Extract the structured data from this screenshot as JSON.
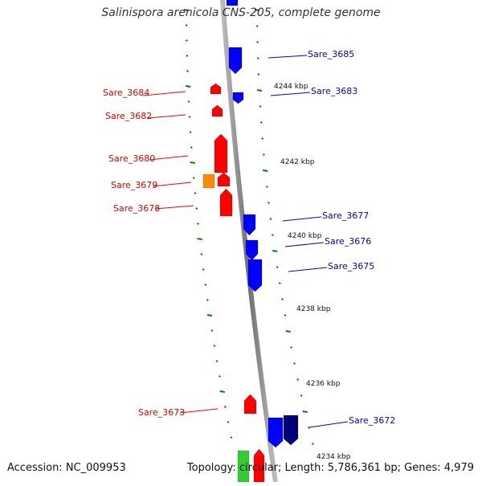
{
  "title": "Salinispora arenicola CNS-205, complete genome",
  "footer": {
    "accession": "Accession: NC_009953",
    "topology": "Topology: circular; Length: 5,786,361 bp; Genes: 4,979"
  },
  "colors": {
    "forward": "#0000ff",
    "reverse": "#ff0000",
    "orange": "#ff8c00",
    "navy": "#00007a",
    "green": "#33cc33",
    "ticks": "#008000"
  },
  "scale_labels": [
    "4244 kbp",
    "4242 kbp",
    "4240 kbp",
    "4238 kbp",
    "4236 kbp",
    "4234 kbp"
  ],
  "genes_left": [
    "Sare_3684",
    "Sare_3682",
    "Sare_3680",
    "Sare_3679",
    "Sare_3678",
    "Sare_3673"
  ],
  "genes_right": [
    "Sare_3685",
    "Sare_3683",
    "Sare_3677",
    "Sare_3676",
    "Sare_3675",
    "Sare_3672"
  ]
}
